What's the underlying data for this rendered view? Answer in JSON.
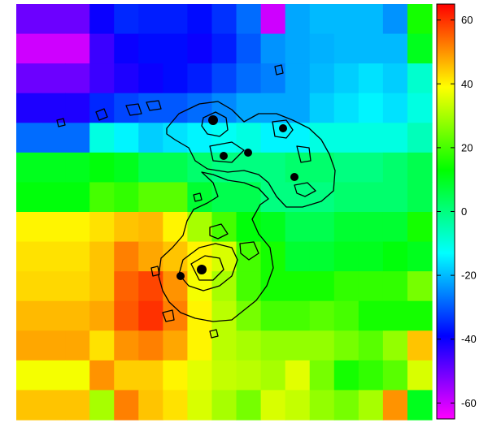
{
  "chart_data": {
    "type": "heatmap",
    "title": "",
    "xlabel": "",
    "ylabel": "",
    "grid": false,
    "legend": "colorbar-right",
    "colorbar": {
      "range": [
        -65,
        65
      ],
      "ticks": [
        60,
        40,
        20,
        0,
        -20,
        -40,
        -60
      ],
      "tick_labels": [
        "60",
        "40",
        "20",
        "0",
        "-20",
        "-40",
        "-60"
      ],
      "colormap": [
        "#ff00ff",
        "#0000ff",
        "#00ffff",
        "#00ff00",
        "#ffff00",
        "#ff0000"
      ]
    },
    "values": [
      [
        -50,
        -50,
        -50,
        -40,
        -35,
        -36,
        -36,
        -38,
        -34,
        -28,
        -60,
        -22,
        -20,
        -20,
        -20,
        -24,
        15
      ],
      [
        -60,
        -60,
        -60,
        -45,
        -40,
        -38,
        -38,
        -40,
        -36,
        -30,
        -24,
        -22,
        -21,
        -20,
        -20,
        -20,
        10
      ],
      [
        -50,
        -50,
        -50,
        -45,
        -42,
        -40,
        -38,
        -36,
        -32,
        -28,
        -26,
        -22,
        -20,
        -18,
        -16,
        -18,
        -8
      ],
      [
        -42,
        -42,
        -42,
        -35,
        -32,
        -30,
        -30,
        -28,
        -25,
        -22,
        -22,
        -22,
        -18,
        -16,
        -14,
        -16,
        -10
      ],
      [
        -28,
        -28,
        -28,
        -10,
        -14,
        -18,
        -16,
        -14,
        -12,
        -10,
        -14,
        -14,
        -10,
        -10,
        -10,
        -10,
        -6
      ],
      [
        10,
        10,
        10,
        12,
        10,
        5,
        5,
        2,
        0,
        0,
        0,
        2,
        2,
        0,
        0,
        2,
        5
      ],
      [
        12,
        12,
        12,
        20,
        18,
        22,
        22,
        8,
        5,
        5,
        0,
        0,
        0,
        2,
        2,
        2,
        5
      ],
      [
        40,
        40,
        40,
        42,
        45,
        46,
        40,
        30,
        20,
        12,
        10,
        5,
        5,
        8,
        8,
        8,
        15
      ],
      [
        42,
        42,
        42,
        45,
        52,
        48,
        45,
        40,
        35,
        20,
        15,
        8,
        8,
        10,
        10,
        12,
        10
      ],
      [
        43,
        43,
        43,
        45,
        55,
        58,
        50,
        38,
        30,
        20,
        15,
        15,
        15,
        18,
        18,
        18,
        25
      ],
      [
        46,
        46,
        46,
        48,
        56,
        60,
        52,
        40,
        32,
        25,
        20,
        20,
        22,
        20,
        15,
        15,
        15
      ],
      [
        48,
        48,
        48,
        42,
        50,
        52,
        48,
        40,
        32,
        30,
        28,
        28,
        28,
        25,
        22,
        28,
        45
      ],
      [
        38,
        38,
        38,
        50,
        44,
        44,
        40,
        36,
        33,
        32,
        30,
        36,
        25,
        15,
        18,
        22,
        35
      ],
      [
        45,
        45,
        45,
        30,
        52,
        45,
        42,
        35,
        30,
        25,
        35,
        33,
        28,
        25,
        30,
        50,
        10
      ]
    ]
  }
}
